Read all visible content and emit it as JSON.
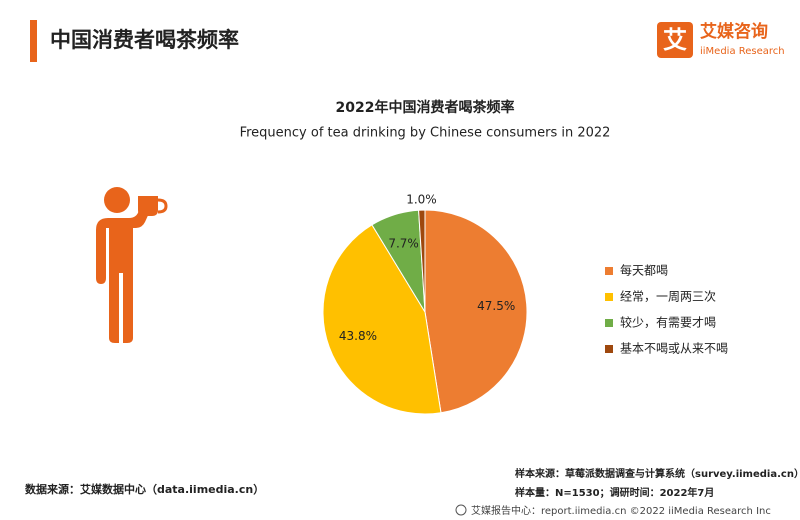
{
  "header": {
    "title": "中国消费者喝茶频率",
    "logo_icon": "艾",
    "logo_cn": "艾媒咨询",
    "logo_en": "iiMedia Research"
  },
  "chart_data": {
    "type": "pie",
    "title": "2022年中国消费者喝茶频率",
    "subtitle": "Frequency of tea drinking by Chinese consumers in 2022",
    "categories": [
      "每天都喝",
      "经常，一周两三次",
      "较少，有需要才喝",
      "基本不喝或从来不喝"
    ],
    "values": [
      47.5,
      43.8,
      7.7,
      1.0
    ],
    "value_labels": [
      "47.5%",
      "43.8%",
      "7.7%",
      "1.0%"
    ],
    "colors": [
      "#ED7D31",
      "#FFC000",
      "#70AD47",
      "#9E480E"
    ],
    "legend": "right"
  },
  "footer": {
    "source": "数据来源：艾媒数据中心（data.iimedia.cn）",
    "sample_source": "样本来源：草莓派数据调查与计算系统（survey.iimedia.cn）",
    "sample_size": "样本量：N=1530；调研时间：2022年7月",
    "copyright": "艾媒报告中心：report.iimedia.cn ©2022 iiMedia Research Inc"
  }
}
